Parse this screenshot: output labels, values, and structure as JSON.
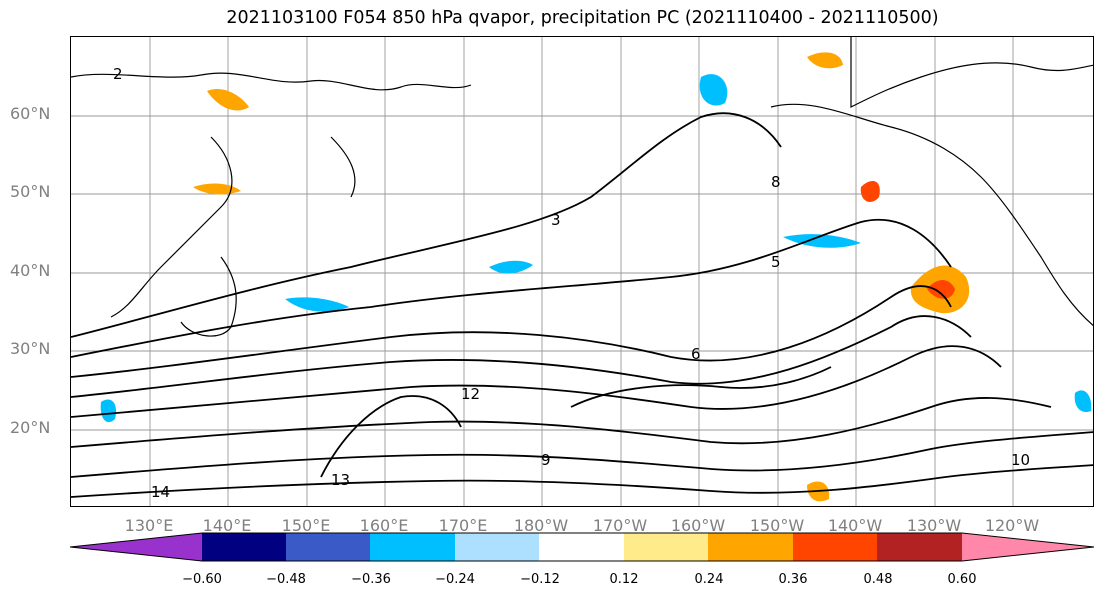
{
  "title": "2021103100 F054 850 hPa qvapor, precipitation PC (2021110400 - 2021110500)",
  "lat_labels": [
    "60°N",
    "50°N",
    "40°N",
    "30°N",
    "20°N"
  ],
  "lon_labels": [
    "130°E",
    "140°E",
    "150°E",
    "160°E",
    "170°E",
    "180°W",
    "170°W",
    "160°W",
    "150°W",
    "140°W",
    "130°W",
    "120°W"
  ],
  "colorbar": {
    "colors": [
      "#9932CC",
      "#000080",
      "#3A5BC7",
      "#00BFFF",
      "#ADDFFF",
      "#FFFFFF",
      "#FFEB8A",
      "#FFA500",
      "#FF4500",
      "#B22222",
      "#FF88AA"
    ],
    "tick_labels": [
      "−0.60",
      "−0.48",
      "−0.36",
      "−0.24",
      "−0.12",
      "0.12",
      "0.24",
      "0.36",
      "0.48",
      "0.60"
    ]
  },
  "contour_labels": [
    "2",
    "3",
    "5",
    "6",
    "8",
    "9",
    "10",
    "12",
    "13",
    "14"
  ],
  "colors": {
    "land_outline": "#000000",
    "gridline": "#999999",
    "contour": "#000000"
  }
}
